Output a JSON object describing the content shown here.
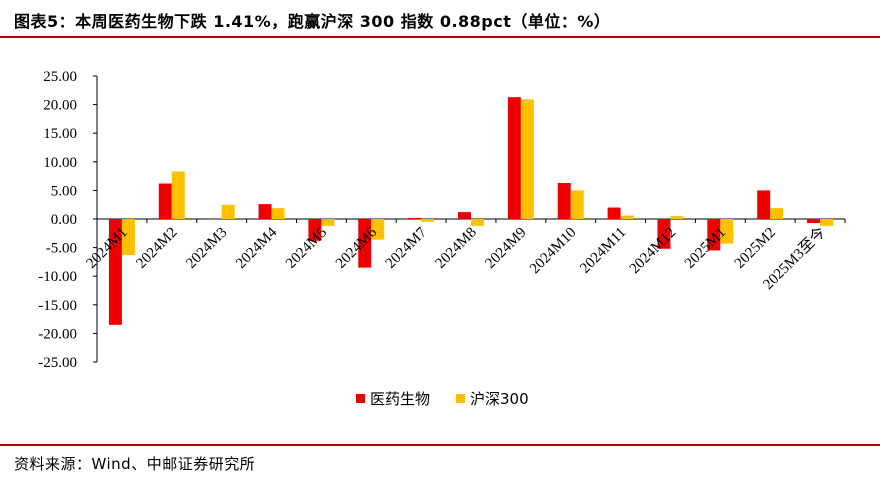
{
  "header": {
    "title": "图表5：本周医药生物下跌 1.41%，跑赢沪深 300 指数 0.88pct（单位：%）"
  },
  "footer": {
    "source": "资料来源：Wind、中邮证券研究所"
  },
  "colors": {
    "series_1": "#ee0000",
    "series_2": "#ffc000",
    "rule": "#c00000"
  },
  "chart_data": {
    "type": "bar",
    "categories": [
      "2024M1",
      "2024M2",
      "2024M3",
      "2024M4",
      "2024M5",
      "2024M6",
      "2024M7",
      "2024M8",
      "2024M9",
      "2024M10",
      "2024M11",
      "2024M12",
      "2025M1",
      "2025M2",
      "2025M3至今"
    ],
    "series": [
      {
        "name": "医药生物",
        "values": [
          -18.5,
          6.2,
          0.0,
          2.6,
          -3.8,
          -8.5,
          0.2,
          1.2,
          21.3,
          6.3,
          2.0,
          -5.2,
          -5.5,
          5.0,
          -0.7
        ]
      },
      {
        "name": "沪深300",
        "values": [
          -6.3,
          8.3,
          2.5,
          1.9,
          -1.2,
          -3.6,
          -0.5,
          -1.2,
          20.9,
          5.0,
          0.6,
          0.5,
          -4.3,
          1.9,
          -1.2
        ]
      }
    ],
    "ylim": [
      -25,
      25
    ],
    "yticks": [
      "25.00",
      "20.00",
      "15.00",
      "10.00",
      "5.00",
      "0.00",
      "-5.00",
      "-10.00",
      "-15.00",
      "-20.00",
      "-25.00"
    ],
    "legend_position": "bottom-center",
    "grid": false
  }
}
